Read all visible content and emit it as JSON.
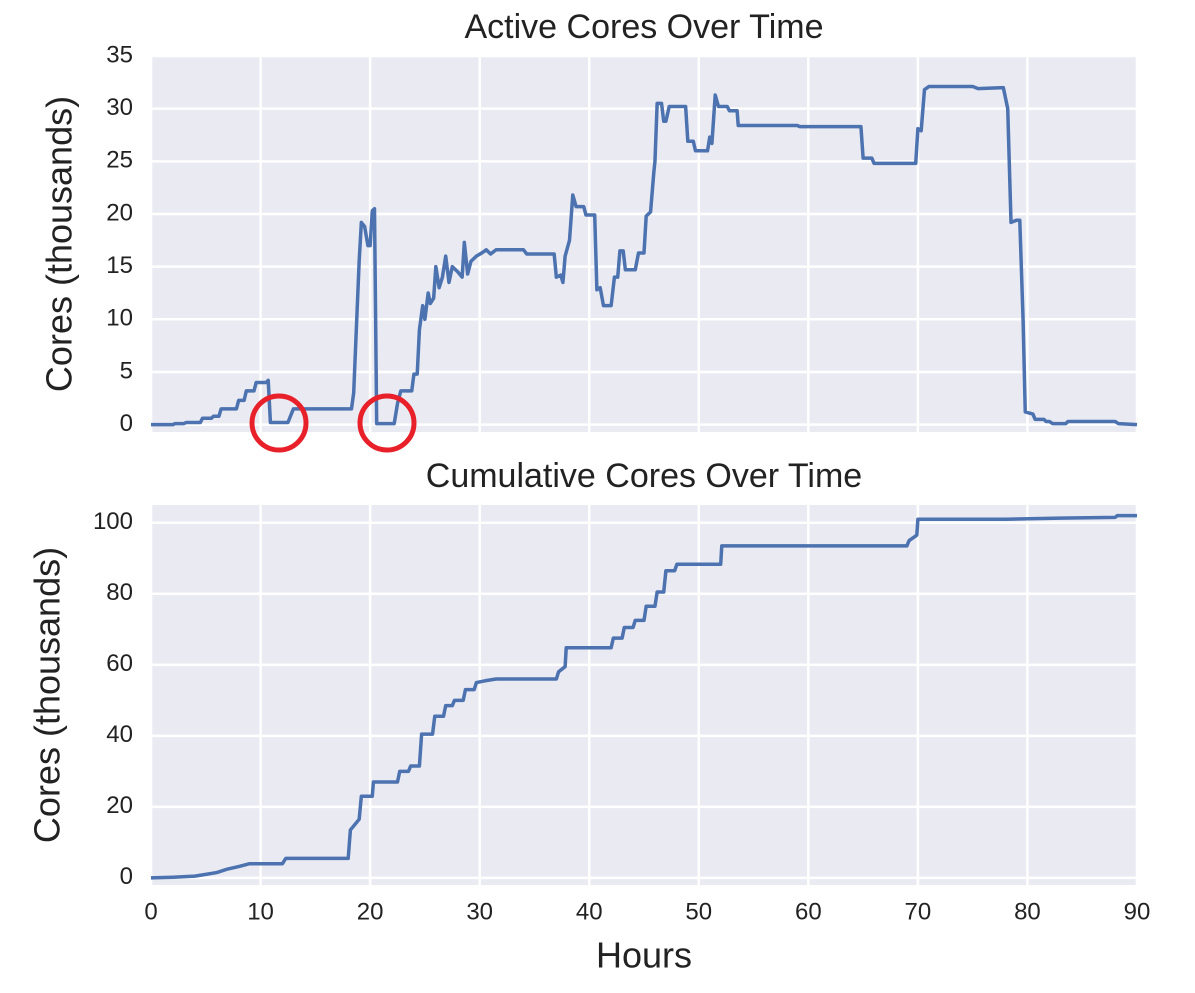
{
  "chart_data": [
    {
      "type": "line",
      "title": "Active Cores Over Time",
      "ylabel": "Cores (thousands)",
      "color": "#4c72b0",
      "grid": true,
      "xlim": [
        0,
        90
      ],
      "xticks": [
        0,
        10,
        20,
        30,
        40,
        50,
        60,
        70,
        80,
        90
      ],
      "xtick_labels": false,
      "ylim": [
        -0.7,
        35
      ],
      "yticks": [
        0,
        5,
        10,
        15,
        20,
        25,
        30,
        35
      ],
      "x": [
        0,
        2,
        2.2,
        3,
        3.2,
        4.5,
        4.7,
        5.5,
        5.7,
        6.2,
        6.4,
        7.8,
        8,
        8.5,
        8.7,
        9.4,
        9.6,
        10.5,
        10.7,
        10.9,
        12,
        12.5,
        13,
        18.3,
        18.5,
        18.7,
        19,
        19.2,
        19.5,
        19.8,
        20,
        20.2,
        20.4,
        20.6,
        22.2,
        22.5,
        22.8,
        23.8,
        24,
        24.3,
        24.5,
        24.8,
        25,
        25.3,
        25.5,
        25.8,
        26,
        26.3,
        26.6,
        26.9,
        27.2,
        27.5,
        28,
        28.4,
        28.6,
        28.9,
        29.2,
        29.7,
        30.2,
        30.6,
        31,
        31.5,
        34,
        34.3,
        36.8,
        37,
        37.4,
        37.6,
        37.8,
        38.2,
        38.5,
        38.8,
        39.5,
        39.7,
        40.5,
        40.7,
        41,
        41.3,
        42,
        42.3,
        42.6,
        42.8,
        43.1,
        43.3,
        44.2,
        44.5,
        45,
        45.2,
        45.6,
        45.9,
        46,
        46.2,
        46.6,
        46.8,
        47,
        47.3,
        48.8,
        49,
        49.5,
        49.7,
        50.8,
        51,
        51.2,
        51.5,
        51.8,
        52.6,
        52.8,
        53.5,
        53.6,
        59,
        59.2,
        64.8,
        65,
        65.8,
        66,
        69.8,
        70,
        70.3,
        70.6,
        71,
        75,
        75.5,
        77.8,
        78.2,
        78.5,
        79,
        79.3,
        79.6,
        79.8,
        80.5,
        80.7,
        81.5,
        81.7,
        82,
        82.3,
        83.5,
        83.7,
        88,
        88.3,
        90
      ],
      "values": [
        0,
        0,
        0.1,
        0.1,
        0.2,
        0.2,
        0.6,
        0.6,
        0.8,
        0.8,
        1.5,
        1.5,
        2.3,
        2.3,
        3.2,
        3.2,
        4,
        4,
        4.2,
        0.2,
        0.2,
        0.2,
        1.5,
        1.5,
        3,
        8,
        15.5,
        19.2,
        18.8,
        17,
        17,
        20.3,
        20.5,
        0.1,
        0.1,
        2,
        3.2,
        3.2,
        4.8,
        4.8,
        9,
        11.3,
        10,
        12.5,
        11.5,
        12,
        15,
        13,
        14,
        16,
        13.5,
        15,
        14.5,
        14,
        17.3,
        14.3,
        15.5,
        16,
        16.3,
        16.6,
        16.2,
        16.6,
        16.6,
        16.2,
        16.2,
        14,
        14.2,
        13.5,
        16,
        17.5,
        21.8,
        20.7,
        20.7,
        19.9,
        19.9,
        12.8,
        13,
        11.3,
        11.3,
        14,
        14,
        16.5,
        16.5,
        14.7,
        14.7,
        16.3,
        16.3,
        19.8,
        20.2,
        24,
        25,
        30.5,
        30.5,
        28.8,
        28.8,
        30.2,
        30.2,
        26.9,
        26.9,
        26,
        26,
        27.3,
        26.7,
        31.3,
        30.2,
        30.2,
        29.8,
        29.8,
        28.4,
        28.4,
        28.3,
        28.3,
        25.3,
        25.3,
        24.8,
        24.8,
        28.1,
        27.9,
        31.8,
        32.1,
        32.1,
        31.9,
        32,
        30,
        19.2,
        19.4,
        19.4,
        10,
        1.2,
        1,
        0.5,
        0.5,
        0.3,
        0.3,
        0.1,
        0.1,
        0.3,
        0.3,
        0.1,
        0
      ]
    },
    {
      "type": "line",
      "title": "Cumulative Cores Over Time",
      "ylabel": "Cores (thousands)",
      "xlabel": "Hours",
      "color": "#4c72b0",
      "grid": true,
      "xlim": [
        0,
        90
      ],
      "xticks": [
        0,
        10,
        20,
        30,
        40,
        50,
        60,
        70,
        80,
        90
      ],
      "xtick_labels": true,
      "ylim": [
        -2,
        105
      ],
      "yticks": [
        0,
        20,
        40,
        60,
        80,
        100
      ],
      "x": [
        0,
        2,
        4,
        5,
        6,
        7,
        8,
        9,
        12,
        12.3,
        18,
        18.2,
        19,
        19.2,
        20.2,
        20.3,
        22.5,
        22.7,
        23.5,
        23.7,
        24.5,
        24.7,
        25.7,
        25.9,
        26.7,
        26.9,
        27.5,
        27.7,
        28.5,
        28.7,
        29.5,
        29.7,
        30.5,
        31.5,
        37,
        37.2,
        37.8,
        37.9,
        42,
        42.2,
        43,
        43.2,
        44,
        44.2,
        45,
        45.2,
        46,
        46.2,
        46.8,
        47,
        47.8,
        48,
        52,
        52.1,
        69,
        69.2,
        69.9,
        70,
        78,
        83,
        88,
        88.2,
        90
      ],
      "values": [
        0,
        0.2,
        0.5,
        1,
        1.5,
        2.5,
        3.2,
        4,
        4,
        5.5,
        5.5,
        13.5,
        16.5,
        23,
        23,
        27,
        27,
        30,
        30,
        31.5,
        31.5,
        40.5,
        40.5,
        45.5,
        45.5,
        48.5,
        48.5,
        50,
        50,
        53,
        53,
        55,
        55.5,
        56,
        56,
        58,
        59.5,
        64.8,
        64.8,
        67.5,
        67.5,
        70.5,
        70.5,
        72.5,
        72.5,
        76.5,
        76.5,
        80.5,
        80.5,
        86.5,
        86.5,
        88.3,
        88.3,
        93.5,
        93.5,
        95,
        96.5,
        101,
        101,
        101.3,
        101.5,
        102,
        102
      ]
    }
  ]
}
